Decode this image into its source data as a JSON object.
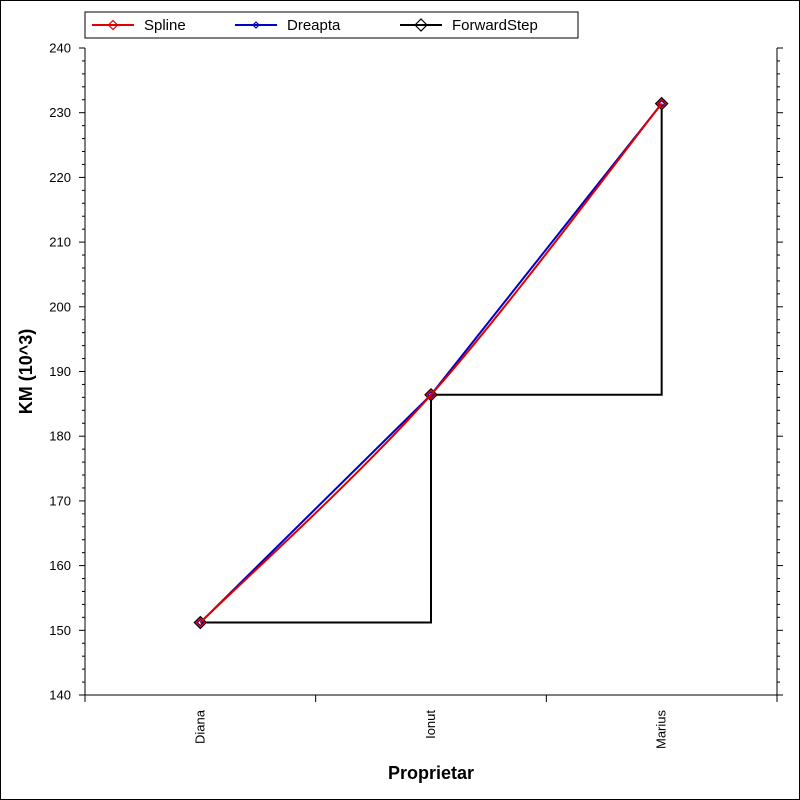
{
  "chart_data": {
    "type": "line",
    "title": "",
    "xlabel": "Proprietar",
    "ylabel": "KM (10^3)",
    "categories": [
      "Diana",
      "Ionut",
      "Marius"
    ],
    "ylim": [
      140,
      240
    ],
    "yticks": [
      140,
      150,
      160,
      170,
      180,
      190,
      200,
      210,
      220,
      230,
      240
    ],
    "legend_position": "top",
    "grid": false,
    "series": [
      {
        "name": "Spline",
        "values": [
          151.2,
          186.4,
          231.4
        ],
        "color": "#e00000",
        "style": "spline",
        "marker": "diamond"
      },
      {
        "name": "Dreapta",
        "values": [
          151.2,
          186.4,
          231.4
        ],
        "color": "#0000c8",
        "style": "straight",
        "marker": "diamond"
      },
      {
        "name": "ForwardStep",
        "values": [
          151.2,
          186.4,
          231.4
        ],
        "color": "#000000",
        "style": "forward-step",
        "marker": "diamond"
      }
    ]
  }
}
